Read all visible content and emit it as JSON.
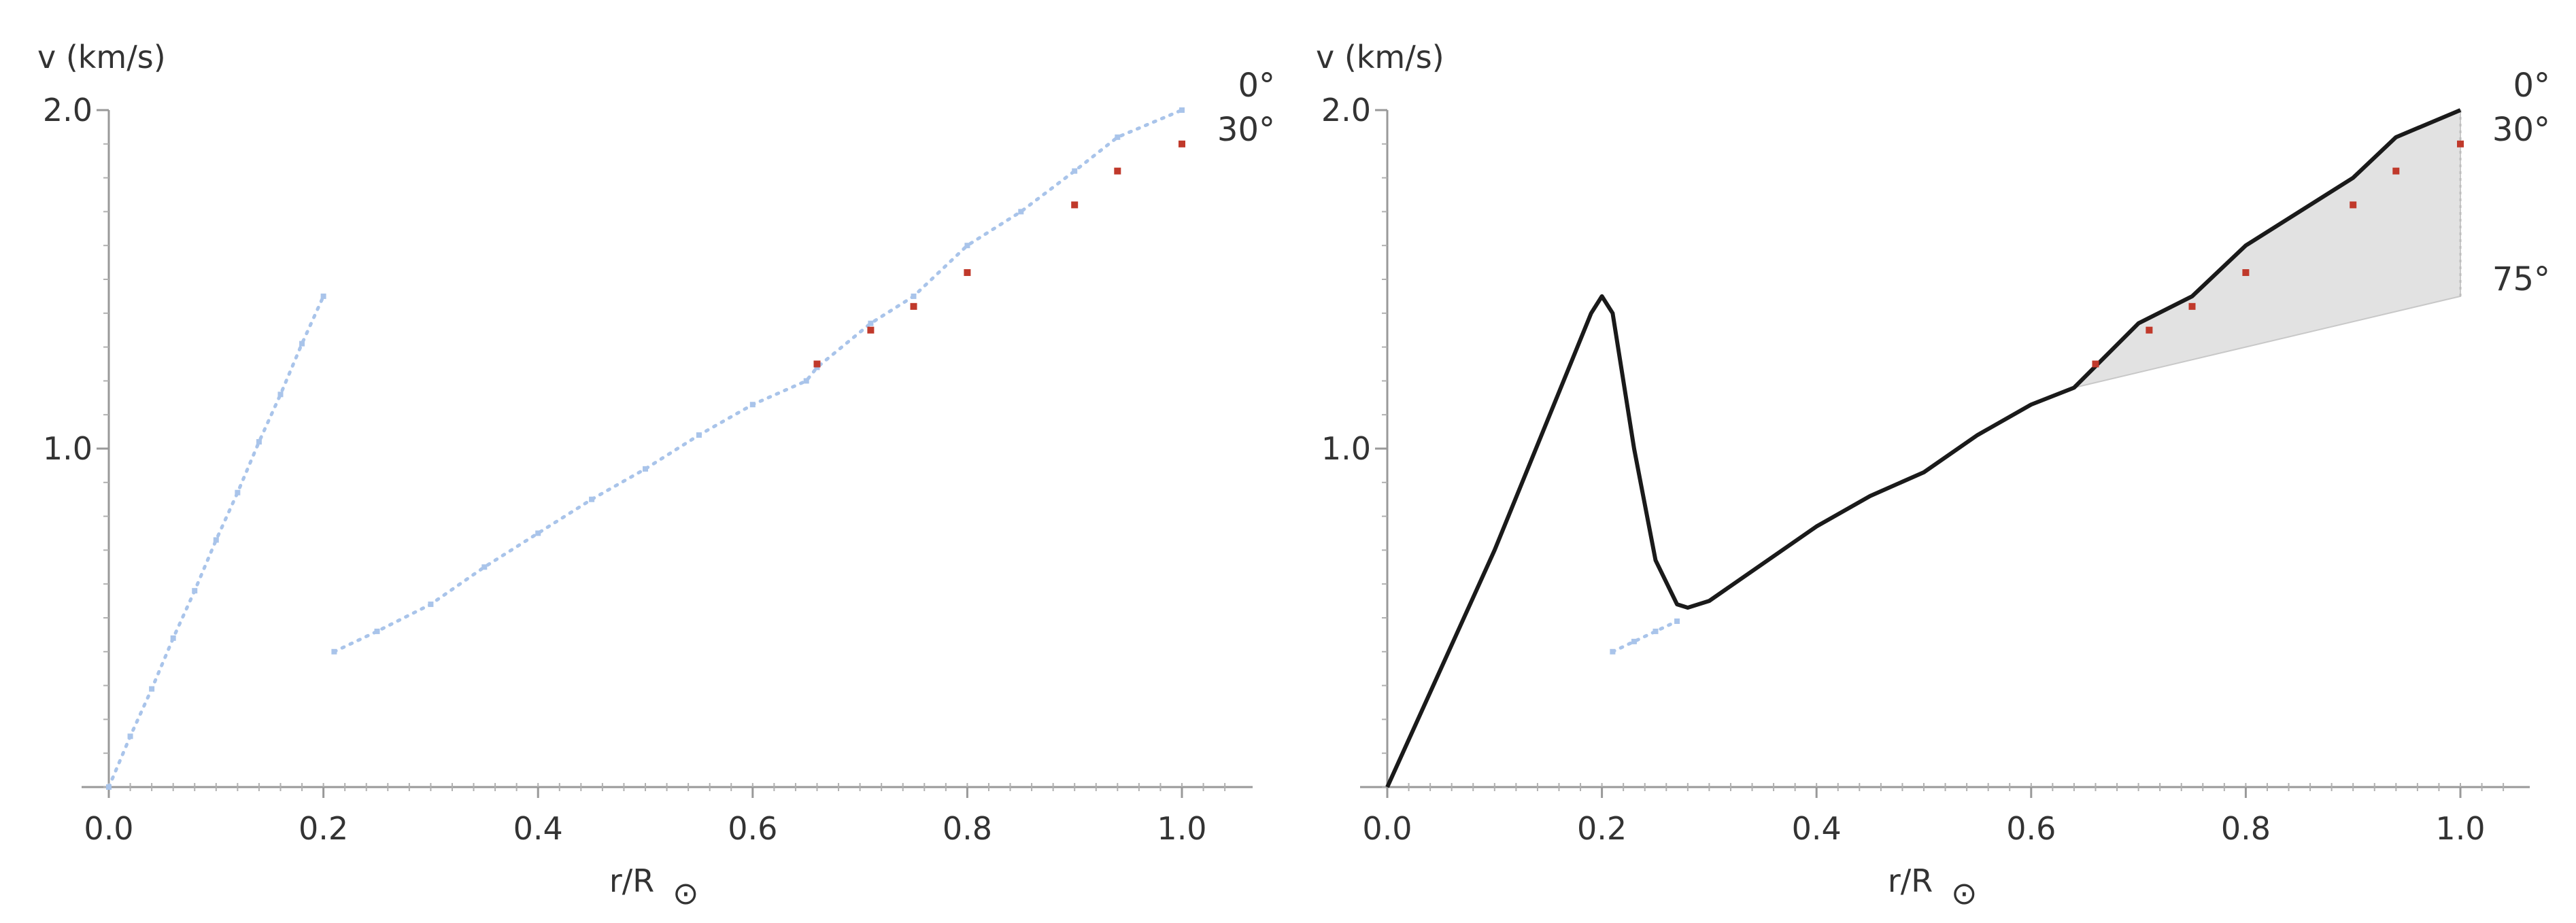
{
  "chart_data": [
    {
      "type": "scatter",
      "xlabel": "r/R",
      "xlabel_sub": "⊙",
      "ylabel": "v (km/s)",
      "xlim": [
        0,
        1.05
      ],
      "ylim": [
        0,
        2.0
      ],
      "x_ticks": [
        "0.0",
        "0.2",
        "0.4",
        "0.6",
        "0.8",
        "1.0"
      ],
      "y_ticks": [
        "1.0",
        "2.0"
      ],
      "series_labels": [
        "0°",
        "30°"
      ],
      "series": [
        {
          "color": "#a9c4ea",
          "style": "dotted",
          "x": [
            0.0,
            0.02,
            0.04,
            0.06,
            0.08,
            0.1,
            0.12,
            0.14,
            0.16,
            0.18,
            0.2
          ],
          "y": [
            0.0,
            0.15,
            0.29,
            0.44,
            0.58,
            0.73,
            0.87,
            1.02,
            1.16,
            1.31,
            1.45
          ]
        },
        {
          "color": "#a9c4ea",
          "style": "dotted",
          "x": [
            0.21,
            0.25,
            0.3,
            0.35,
            0.4,
            0.45,
            0.5,
            0.55,
            0.6,
            0.65,
            0.66,
            0.71,
            0.75,
            0.8,
            0.85,
            0.9,
            0.94,
            1.0
          ],
          "y": [
            0.4,
            0.46,
            0.54,
            0.65,
            0.75,
            0.85,
            0.94,
            1.04,
            1.13,
            1.2,
            1.24,
            1.37,
            1.45,
            1.6,
            1.7,
            1.82,
            1.92,
            2.0
          ]
        },
        {
          "color": "#c0392b",
          "style": "points",
          "x": [
            0.66,
            0.71,
            0.75,
            0.8,
            0.9,
            0.94,
            1.0
          ],
          "y": [
            1.25,
            1.35,
            1.42,
            1.52,
            1.72,
            1.82,
            1.9
          ]
        }
      ]
    },
    {
      "type": "line",
      "xlabel": "r/R",
      "xlabel_sub": "⊙",
      "ylabel": "v (km/s)",
      "xlim": [
        0,
        1.05
      ],
      "ylim": [
        0,
        2.0
      ],
      "x_ticks": [
        "0.0",
        "0.2",
        "0.4",
        "0.6",
        "0.8",
        "1.0"
      ],
      "y_ticks": [
        "1.0",
        "2.0"
      ],
      "series_labels": [
        "0°",
        "30°",
        "75°"
      ],
      "series": [
        {
          "color": "#1a1a1a",
          "style": "solid",
          "x": [
            0.0,
            0.1,
            0.19,
            0.2,
            0.21,
            0.23,
            0.25,
            0.27,
            0.28,
            0.3,
            0.35,
            0.4,
            0.45,
            0.5,
            0.55,
            0.6,
            0.64,
            0.7,
            0.75,
            0.8,
            0.9,
            0.94,
            1.0
          ],
          "y": [
            0.0,
            0.7,
            1.4,
            1.45,
            1.4,
            1.0,
            0.67,
            0.54,
            0.53,
            0.55,
            0.66,
            0.77,
            0.86,
            0.93,
            1.04,
            1.13,
            1.18,
            1.37,
            1.45,
            1.6,
            1.8,
            1.92,
            2.0
          ]
        },
        {
          "color": "#a9c4ea",
          "style": "dotted",
          "x": [
            0.21,
            0.23,
            0.25,
            0.27
          ],
          "y": [
            0.4,
            0.43,
            0.46,
            0.49
          ]
        },
        {
          "color": "#c0392b",
          "style": "points",
          "x": [
            0.66,
            0.71,
            0.75,
            0.8,
            0.9,
            0.94,
            1.0
          ],
          "y": [
            1.25,
            1.35,
            1.42,
            1.52,
            1.72,
            1.82,
            1.9
          ]
        }
      ],
      "band": {
        "color": "#e2e2e2",
        "upper": {
          "x": [
            0.64,
            0.7,
            0.75,
            0.8,
            0.9,
            0.94,
            1.0
          ],
          "y": [
            1.18,
            1.37,
            1.45,
            1.6,
            1.8,
            1.92,
            2.0
          ]
        },
        "lower": {
          "x": [
            0.64,
            1.0
          ],
          "y": [
            1.18,
            1.45
          ]
        }
      }
    }
  ]
}
